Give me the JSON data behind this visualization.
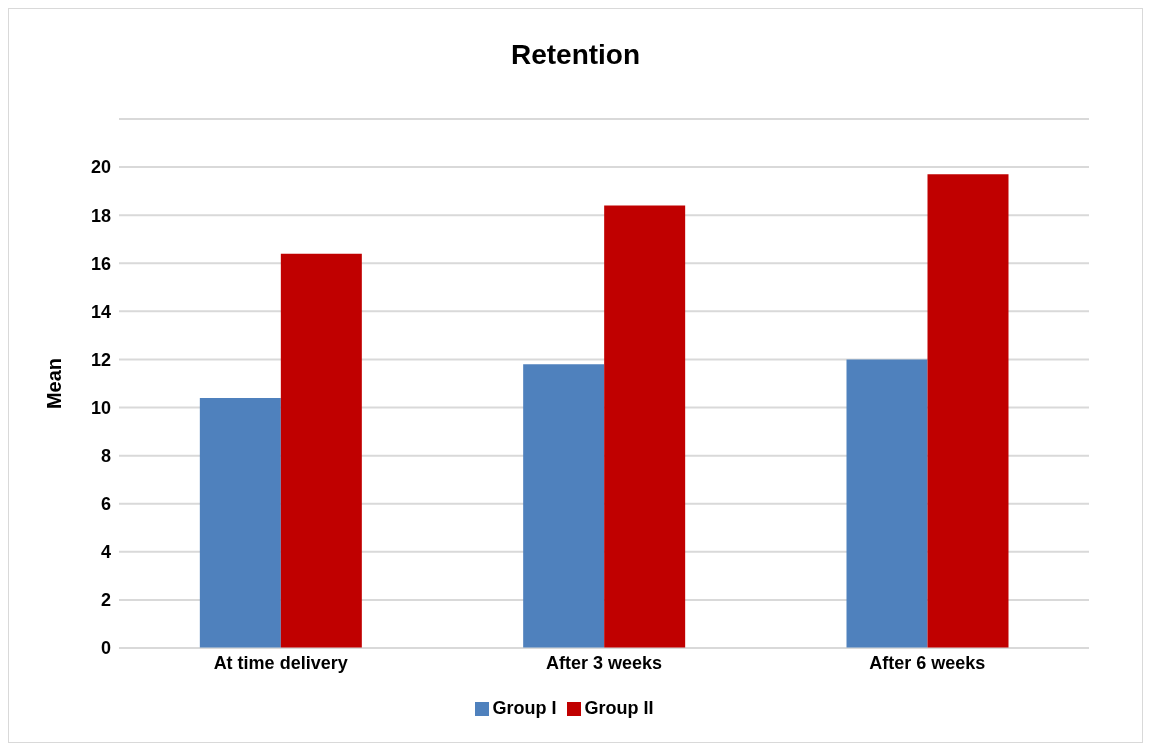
{
  "chart_data": {
    "type": "bar",
    "title": "Retention",
    "ylabel": "Mean",
    "categories": [
      "At time delivery",
      "After 3 weeks",
      "After 6 weeks"
    ],
    "series": [
      {
        "name": "Group I",
        "color": "#4f81bd",
        "values": [
          10.4,
          11.8,
          12.0
        ]
      },
      {
        "name": "Group II",
        "color": "#c00000",
        "values": [
          16.4,
          18.4,
          19.7
        ]
      }
    ],
    "ylim": [
      0,
      22
    ],
    "yticks": [
      0,
      2,
      4,
      6,
      8,
      10,
      12,
      14,
      16,
      18,
      20,
      {
        "value": 22,
        "label": null
      }
    ],
    "grid": "y",
    "legend": "bottom"
  }
}
